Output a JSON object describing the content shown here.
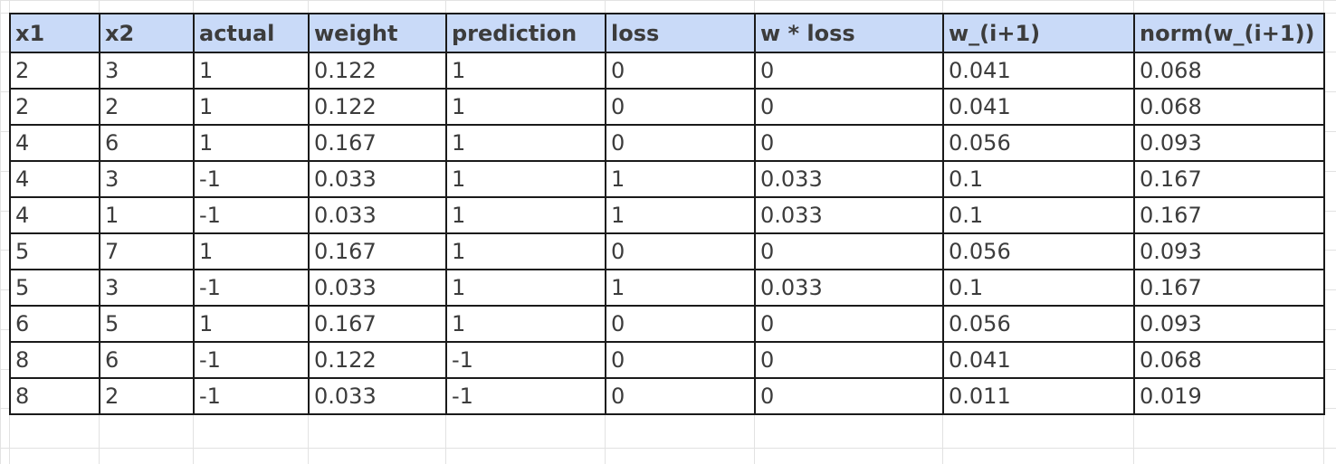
{
  "table": {
    "columns": [
      "x1",
      "x2",
      "actual",
      "weight",
      "prediction",
      "loss",
      "w * loss",
      "w_(i+1)",
      "norm(w_(i+1))"
    ],
    "rows": [
      [
        "2",
        "3",
        "1",
        "0.122",
        "1",
        "0",
        "0",
        "0.041",
        "0.068"
      ],
      [
        "2",
        "2",
        "1",
        "0.122",
        "1",
        "0",
        "0",
        "0.041",
        "0.068"
      ],
      [
        "4",
        "6",
        "1",
        "0.167",
        "1",
        "0",
        "0",
        "0.056",
        "0.093"
      ],
      [
        "4",
        "3",
        "-1",
        "0.033",
        "1",
        "1",
        "0.033",
        "0.1",
        "0.167"
      ],
      [
        "4",
        "1",
        "-1",
        "0.033",
        "1",
        "1",
        "0.033",
        "0.1",
        "0.167"
      ],
      [
        "5",
        "7",
        "1",
        "0.167",
        "1",
        "0",
        "0",
        "0.056",
        "0.093"
      ],
      [
        "5",
        "3",
        "-1",
        "0.033",
        "1",
        "1",
        "0.033",
        "0.1",
        "0.167"
      ],
      [
        "6",
        "5",
        "1",
        "0.167",
        "1",
        "0",
        "0",
        "0.056",
        "0.093"
      ],
      [
        "8",
        "6",
        "-1",
        "0.122",
        "-1",
        "0",
        "0",
        "0.041",
        "0.068"
      ],
      [
        "8",
        "2",
        "-1",
        "0.033",
        "-1",
        "0",
        "0",
        "0.011",
        "0.019"
      ]
    ]
  },
  "colors": {
    "header_background": "#c9daf8",
    "border": "#1a1a1a",
    "text": "#3c3c3c",
    "gridline": "#e2e2e2"
  }
}
